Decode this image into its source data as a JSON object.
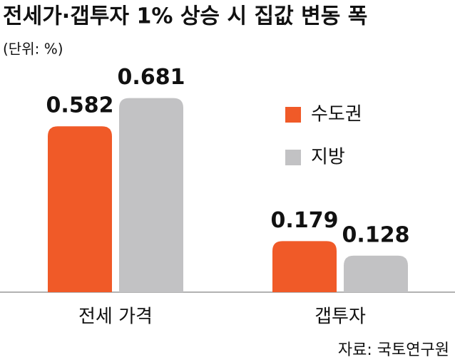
{
  "chart_data": {
    "type": "bar",
    "title": "전세가·갭투자 1% 상승 시 집값 변동 폭",
    "subtitle": "(단위: %)",
    "categories": [
      "전세 가격",
      "갭투자"
    ],
    "series": [
      {
        "name": "수도권",
        "color": "#f05a28",
        "values": [
          0.582,
          0.179
        ]
      },
      {
        "name": "지방",
        "color": "#c2c2c4",
        "values": [
          0.681,
          0.128
        ]
      }
    ],
    "source": "자료: 국토연구원"
  }
}
